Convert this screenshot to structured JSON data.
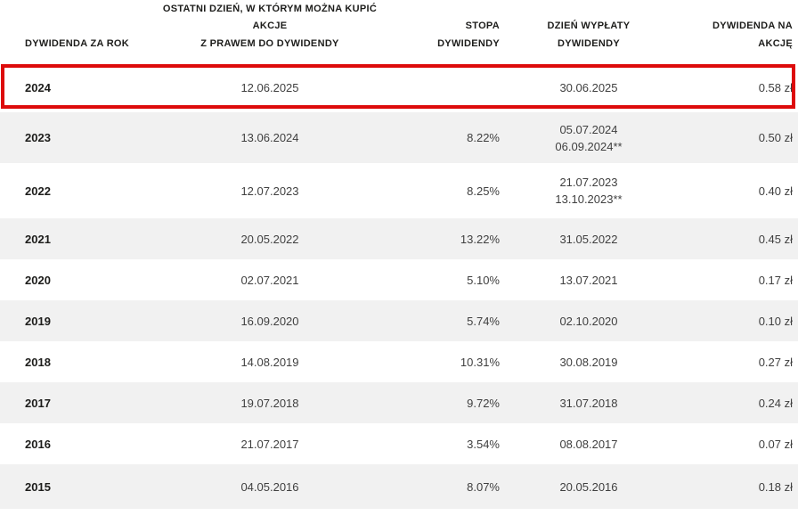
{
  "colors": {
    "highlight_red": "#dd0b0b",
    "zebra_gray": "#f1f1f1",
    "header_text": "#1d1d1b",
    "body_text": "#3f3f3f"
  },
  "highlight": {
    "highlighted_year": "2024"
  },
  "table": {
    "columns": [
      {
        "label": "DYWIDENDA ZA ROK"
      },
      {
        "label": "OSTATNI DZIEŃ, W KTÓRYM MOŻNA KUPIĆ AKCJE\nZ PRAWEM DO DYWIDENDY"
      },
      {
        "label": "STOPA\nDYWIDENDY"
      },
      {
        "label": "DZIEŃ WYPŁATY\nDYWIDENDY"
      },
      {
        "label": "DYWIDENDA NA\nAKCJĘ"
      }
    ],
    "rows": [
      {
        "year": "2024",
        "last_buy_day": "12.06.2025",
        "dividend_rate": "",
        "payout_days": [
          "30.06.2025"
        ],
        "dividend_per_share": "0.58 zł",
        "highlighted": true
      },
      {
        "year": "2023",
        "last_buy_day": "13.06.2024",
        "dividend_rate": "8.22%",
        "payout_days": [
          "05.07.2024",
          "06.09.2024**"
        ],
        "dividend_per_share": "0.50 zł",
        "highlighted": false
      },
      {
        "year": "2022",
        "last_buy_day": "12.07.2023",
        "dividend_rate": "8.25%",
        "payout_days": [
          "21.07.2023",
          "13.10.2023**"
        ],
        "dividend_per_share": "0.40 zł",
        "highlighted": false
      },
      {
        "year": "2021",
        "last_buy_day": "20.05.2022",
        "dividend_rate": "13.22%",
        "payout_days": [
          "31.05.2022"
        ],
        "dividend_per_share": "0.45 zł",
        "highlighted": false
      },
      {
        "year": "2020",
        "last_buy_day": "02.07.2021",
        "dividend_rate": "5.10%",
        "payout_days": [
          "13.07.2021"
        ],
        "dividend_per_share": "0.17 zł",
        "highlighted": false
      },
      {
        "year": "2019",
        "last_buy_day": "16.09.2020",
        "dividend_rate": "5.74%",
        "payout_days": [
          "02.10.2020"
        ],
        "dividend_per_share": "0.10 zł",
        "highlighted": false
      },
      {
        "year": "2018",
        "last_buy_day": "14.08.2019",
        "dividend_rate": "10.31%",
        "payout_days": [
          "30.08.2019"
        ],
        "dividend_per_share": "0.27 zł",
        "highlighted": false
      },
      {
        "year": "2017",
        "last_buy_day": "19.07.2018",
        "dividend_rate": "9.72%",
        "payout_days": [
          "31.07.2018"
        ],
        "dividend_per_share": "0.24 zł",
        "highlighted": false
      },
      {
        "year": "2016",
        "last_buy_day": "21.07.2017",
        "dividend_rate": "3.54%",
        "payout_days": [
          "08.08.2017"
        ],
        "dividend_per_share": "0.07 zł",
        "highlighted": false
      },
      {
        "year": "2015",
        "last_buy_day": "04.05.2016",
        "dividend_rate": "8.07%",
        "payout_days": [
          "20.05.2016"
        ],
        "dividend_per_share": "0.18 zł",
        "highlighted": false
      }
    ]
  }
}
